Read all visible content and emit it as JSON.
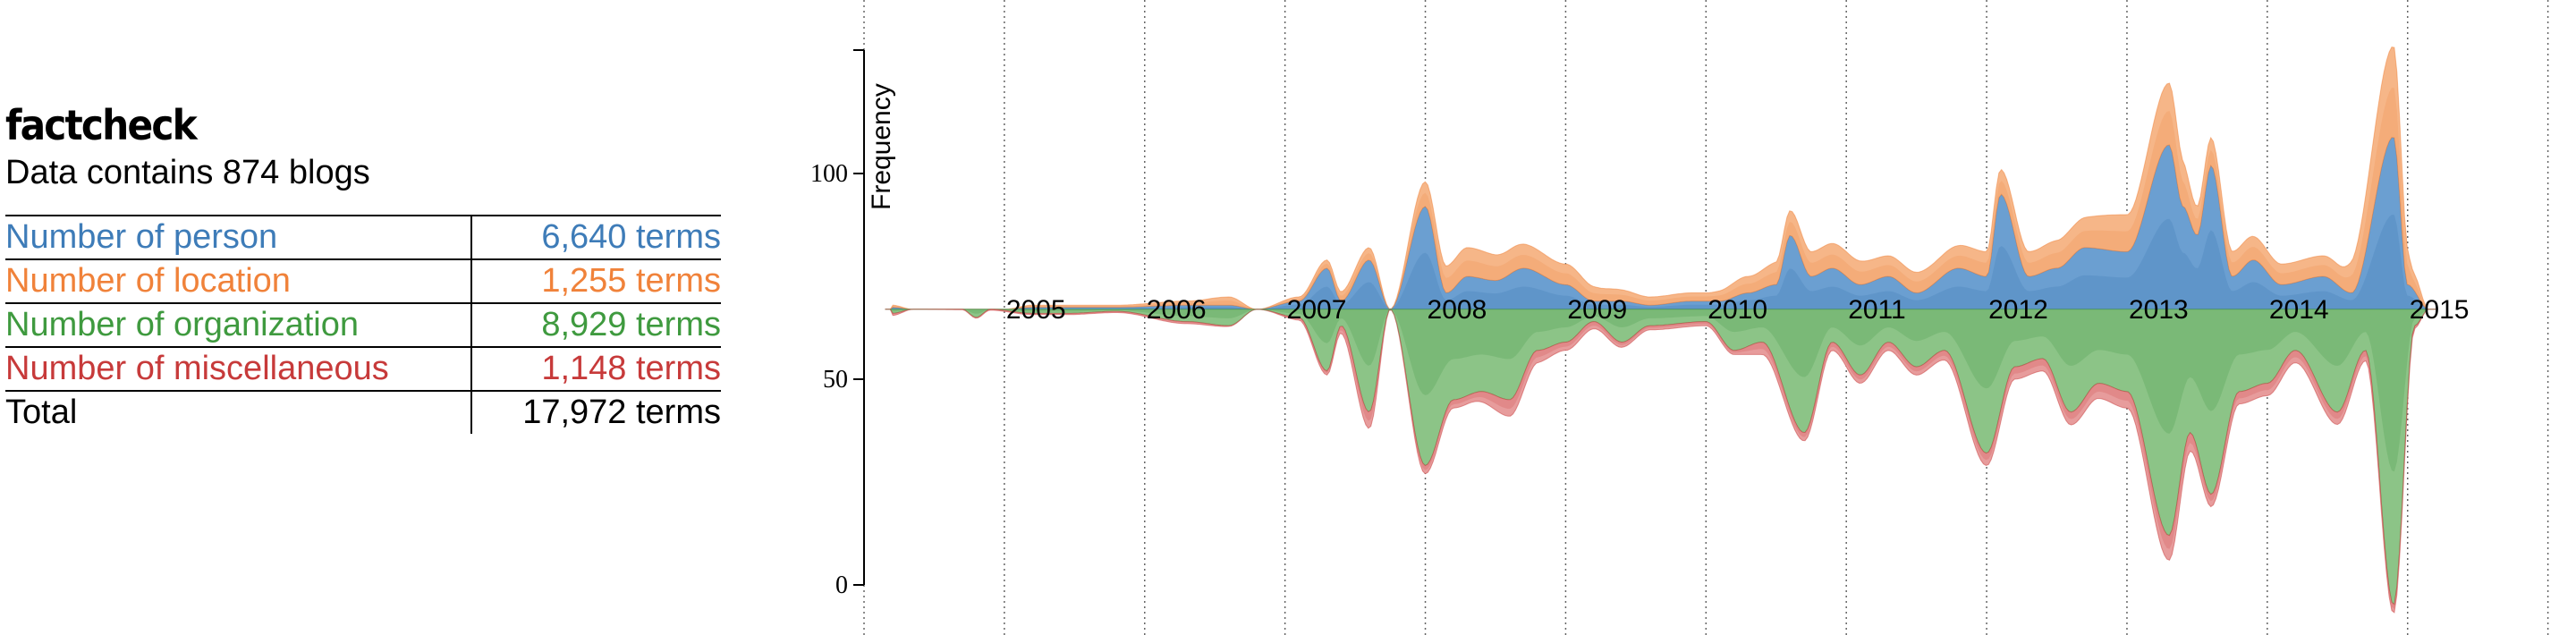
{
  "info": {
    "title": "factcheck",
    "subtitle": "Data contains 874 blogs",
    "rows": [
      {
        "label": "Number of person",
        "value": "6,640 terms",
        "color": "#3e7cb8"
      },
      {
        "label": "Number of location",
        "value": "1,255 terms",
        "color": "#f0823a"
      },
      {
        "label": "Number of organization",
        "value": "8,929 terms",
        "color": "#3f9a3f"
      },
      {
        "label": "Number of miscellaneous",
        "value": "1,148 terms",
        "color": "#c73a3a"
      },
      {
        "label": "Total",
        "value": "17,972 terms",
        "color": "#000000"
      }
    ]
  },
  "chart_data": {
    "type": "area",
    "ylabel": "Frequency",
    "ylim": [
      0,
      130
    ],
    "yticks": [
      0,
      50,
      100
    ],
    "baseline": 67,
    "grid": "vertical dotted lines at year boundaries",
    "x_domain": [
      2004.0,
      2016.2
    ],
    "year_labels": [
      "2005",
      "2006",
      "2007",
      "2008",
      "2009",
      "2010",
      "2011",
      "2012",
      "2013",
      "2014",
      "2015"
    ],
    "series": [
      {
        "name": "person",
        "color": "#6b9fd1",
        "dark": "#2f6ba8",
        "side": "up",
        "points": [
          [
            2004.2,
            0.5
          ],
          [
            2004.35,
            0
          ],
          [
            2005.0,
            0
          ],
          [
            2005.2,
            0.5
          ],
          [
            2005.45,
            0.5
          ],
          [
            2005.8,
            0.5
          ],
          [
            2006.3,
            1
          ],
          [
            2006.6,
            1
          ],
          [
            2006.8,
            0
          ],
          [
            2007.1,
            2
          ],
          [
            2007.3,
            10
          ],
          [
            2007.4,
            2
          ],
          [
            2007.6,
            12
          ],
          [
            2007.75,
            0
          ],
          [
            2008.0,
            25
          ],
          [
            2008.15,
            4
          ],
          [
            2008.3,
            8
          ],
          [
            2008.5,
            7
          ],
          [
            2008.7,
            10
          ],
          [
            2009.0,
            6
          ],
          [
            2009.2,
            2
          ],
          [
            2009.4,
            2
          ],
          [
            2009.6,
            1
          ],
          [
            2009.9,
            2
          ],
          [
            2010.1,
            2
          ],
          [
            2010.3,
            4
          ],
          [
            2010.5,
            6
          ],
          [
            2010.6,
            18
          ],
          [
            2010.75,
            8
          ],
          [
            2010.9,
            10
          ],
          [
            2011.1,
            6
          ],
          [
            2011.3,
            8
          ],
          [
            2011.5,
            4
          ],
          [
            2011.8,
            10
          ],
          [
            2012.0,
            8
          ],
          [
            2012.1,
            28
          ],
          [
            2012.3,
            8
          ],
          [
            2012.5,
            10
          ],
          [
            2012.7,
            15
          ],
          [
            2013.0,
            14
          ],
          [
            2013.3,
            40
          ],
          [
            2013.4,
            25
          ],
          [
            2013.5,
            18
          ],
          [
            2013.6,
            35
          ],
          [
            2013.75,
            8
          ],
          [
            2013.9,
            12
          ],
          [
            2014.1,
            6
          ],
          [
            2014.4,
            8
          ],
          [
            2014.6,
            4
          ],
          [
            2014.9,
            42
          ],
          [
            2015.0,
            6
          ],
          [
            2015.15,
            0
          ]
        ]
      },
      {
        "name": "location",
        "color": "#f6b688",
        "dark": "#f0823a",
        "side": "up",
        "points": [
          [
            2004.2,
            0.5
          ],
          [
            2004.35,
            0
          ],
          [
            2005.0,
            0
          ],
          [
            2005.2,
            0.5
          ],
          [
            2005.45,
            0.5
          ],
          [
            2005.8,
            0.5
          ],
          [
            2006.3,
            1
          ],
          [
            2006.6,
            2
          ],
          [
            2006.8,
            0
          ],
          [
            2007.1,
            1
          ],
          [
            2007.3,
            2
          ],
          [
            2007.6,
            3
          ],
          [
            2007.75,
            0
          ],
          [
            2008.0,
            6
          ],
          [
            2008.3,
            7
          ],
          [
            2008.6,
            6
          ],
          [
            2009.0,
            5
          ],
          [
            2009.3,
            3
          ],
          [
            2009.6,
            2
          ],
          [
            2010.0,
            2
          ],
          [
            2010.3,
            4
          ],
          [
            2010.6,
            6
          ],
          [
            2011.0,
            6
          ],
          [
            2011.3,
            5
          ],
          [
            2011.6,
            5
          ],
          [
            2012.0,
            6
          ],
          [
            2012.3,
            6
          ],
          [
            2012.6,
            7
          ],
          [
            2013.0,
            9
          ],
          [
            2013.3,
            15
          ],
          [
            2013.5,
            7
          ],
          [
            2013.8,
            6
          ],
          [
            2014.1,
            5
          ],
          [
            2014.5,
            5
          ],
          [
            2014.9,
            22
          ],
          [
            2015.05,
            4
          ],
          [
            2015.15,
            0
          ]
        ]
      },
      {
        "name": "organization",
        "color": "#8cc487",
        "dark": "#2f8a32",
        "side": "down",
        "points": [
          [
            2004.2,
            1
          ],
          [
            2004.35,
            0
          ],
          [
            2004.7,
            0
          ],
          [
            2004.8,
            2
          ],
          [
            2004.9,
            0
          ],
          [
            2005.2,
            1
          ],
          [
            2005.45,
            1
          ],
          [
            2005.8,
            0.5
          ],
          [
            2006.3,
            3
          ],
          [
            2006.6,
            4
          ],
          [
            2006.8,
            0
          ],
          [
            2007.1,
            2
          ],
          [
            2007.3,
            15
          ],
          [
            2007.4,
            4
          ],
          [
            2007.6,
            25
          ],
          [
            2007.75,
            0
          ],
          [
            2008.0,
            38
          ],
          [
            2008.2,
            22
          ],
          [
            2008.4,
            20
          ],
          [
            2008.6,
            22
          ],
          [
            2008.8,
            10
          ],
          [
            2009.0,
            8
          ],
          [
            2009.2,
            3
          ],
          [
            2009.4,
            8
          ],
          [
            2009.6,
            4
          ],
          [
            2010.0,
            3
          ],
          [
            2010.2,
            10
          ],
          [
            2010.4,
            8
          ],
          [
            2010.7,
            30
          ],
          [
            2010.9,
            8
          ],
          [
            2011.1,
            16
          ],
          [
            2011.3,
            8
          ],
          [
            2011.5,
            14
          ],
          [
            2011.7,
            10
          ],
          [
            2012.0,
            35
          ],
          [
            2012.2,
            14
          ],
          [
            2012.4,
            12
          ],
          [
            2012.6,
            25
          ],
          [
            2012.8,
            18
          ],
          [
            2013.0,
            20
          ],
          [
            2013.3,
            55
          ],
          [
            2013.45,
            30
          ],
          [
            2013.6,
            45
          ],
          [
            2013.8,
            20
          ],
          [
            2014.0,
            18
          ],
          [
            2014.2,
            10
          ],
          [
            2014.5,
            25
          ],
          [
            2014.7,
            10
          ],
          [
            2014.9,
            72
          ],
          [
            2015.05,
            4
          ],
          [
            2015.15,
            0
          ]
        ]
      },
      {
        "name": "miscellaneous",
        "color": "#e79c9c",
        "dark": "#c73a3a",
        "side": "down",
        "points": [
          [
            2004.2,
            0.5
          ],
          [
            2004.35,
            0
          ],
          [
            2005.2,
            0.3
          ],
          [
            2005.8,
            0.3
          ],
          [
            2006.3,
            0.5
          ],
          [
            2006.8,
            0
          ],
          [
            2007.3,
            1
          ],
          [
            2007.6,
            4
          ],
          [
            2007.75,
            0
          ],
          [
            2008.0,
            2
          ],
          [
            2008.3,
            2
          ],
          [
            2008.6,
            4
          ],
          [
            2009.0,
            2
          ],
          [
            2009.6,
            1
          ],
          [
            2010.2,
            1
          ],
          [
            2010.4,
            3
          ],
          [
            2010.7,
            2
          ],
          [
            2011.0,
            2
          ],
          [
            2011.5,
            2
          ],
          [
            2012.0,
            3
          ],
          [
            2012.5,
            3
          ],
          [
            2013.0,
            4
          ],
          [
            2013.3,
            6
          ],
          [
            2013.6,
            3
          ],
          [
            2014.0,
            3
          ],
          [
            2014.5,
            3
          ],
          [
            2014.9,
            2
          ],
          [
            2015.15,
            0
          ]
        ]
      }
    ]
  }
}
